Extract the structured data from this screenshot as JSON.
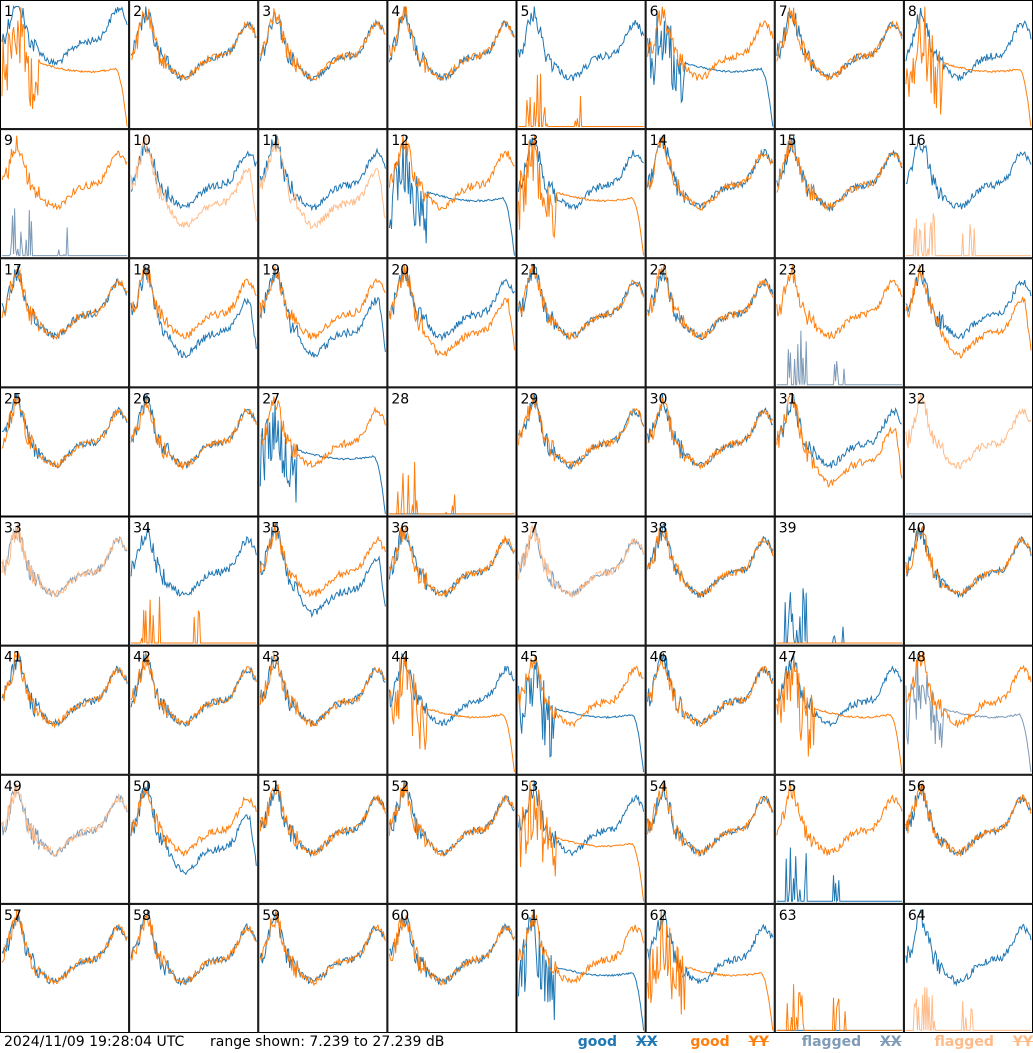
{
  "timestamp": "2024/11/09 19:28:04 UTC",
  "range_text": "range shown: 7.239 to 27.239 dB",
  "legend": [
    {
      "prefix": "good ",
      "pol": "XX",
      "color": "#1f77b4"
    },
    {
      "prefix": "good ",
      "pol": "YY",
      "color": "#ff7f0e"
    },
    {
      "prefix": "flagged ",
      "pol": "XX",
      "color": "#7f9bb8"
    },
    {
      "prefix": "flagged ",
      "pol": "YY",
      "color": "#ffbb88"
    }
  ],
  "chart_data": {
    "type": "line",
    "grid": {
      "rows": 8,
      "cols": 8
    },
    "ylim_db": [
      7.239,
      27.239
    ],
    "panels": [
      {
        "label": "1",
        "xx": "r",
        "yy": "d"
      },
      {
        "label": "2",
        "xx": "g",
        "yy": "g"
      },
      {
        "label": "3",
        "xx": "g",
        "yy": "g"
      },
      {
        "label": "4",
        "xx": "g",
        "yy": "g"
      },
      {
        "label": "5",
        "xx": "g",
        "yy": "s"
      },
      {
        "label": "6",
        "xx": "d",
        "yy": "g"
      },
      {
        "label": "7",
        "xx": "g",
        "yy": "g"
      },
      {
        "label": "8",
        "xx": "g",
        "yy": "d"
      },
      {
        "label": "9",
        "xx": "fs",
        "yy": "g"
      },
      {
        "label": "10",
        "xx": "g",
        "yy": "fl"
      },
      {
        "label": "11",
        "xx": "g",
        "yy": "fl"
      },
      {
        "label": "12",
        "xx": "d",
        "yy": "g"
      },
      {
        "label": "13",
        "xx": "g",
        "yy": "d"
      },
      {
        "label": "14",
        "xx": "g",
        "yy": "g"
      },
      {
        "label": "15",
        "xx": "g",
        "yy": "g"
      },
      {
        "label": "16",
        "xx": "g",
        "yy": "fs"
      },
      {
        "label": "17",
        "xx": "g",
        "yy": "g"
      },
      {
        "label": "18",
        "xx": "l",
        "yy": "g"
      },
      {
        "label": "19",
        "xx": "l",
        "yy": "g"
      },
      {
        "label": "20",
        "xx": "g",
        "yy": "l"
      },
      {
        "label": "21",
        "xx": "g",
        "yy": "g"
      },
      {
        "label": "22",
        "xx": "g",
        "yy": "g"
      },
      {
        "label": "23",
        "xx": "fs",
        "yy": "g"
      },
      {
        "label": "24",
        "xx": "g",
        "yy": "l"
      },
      {
        "label": "25",
        "xx": "g",
        "yy": "g"
      },
      {
        "label": "26",
        "xx": "g",
        "yy": "g"
      },
      {
        "label": "27",
        "xx": "d",
        "yy": "g"
      },
      {
        "label": "28",
        "xx": "z",
        "yy": "s"
      },
      {
        "label": "29",
        "xx": "g",
        "yy": "g"
      },
      {
        "label": "30",
        "xx": "g",
        "yy": "g"
      },
      {
        "label": "31",
        "xx": "g",
        "yy": "l"
      },
      {
        "label": "32",
        "xx": "fz",
        "yy": "fg"
      },
      {
        "label": "33",
        "xx": "fg",
        "yy": "fg"
      },
      {
        "label": "34",
        "xx": "g",
        "yy": "s"
      },
      {
        "label": "35",
        "xx": "l",
        "yy": "g"
      },
      {
        "label": "36",
        "xx": "g",
        "yy": "g"
      },
      {
        "label": "37",
        "xx": "fg",
        "yy": "fg"
      },
      {
        "label": "38",
        "xx": "g",
        "yy": "g"
      },
      {
        "label": "39",
        "xx": "s",
        "yy": "z"
      },
      {
        "label": "40",
        "xx": "g",
        "yy": "g"
      },
      {
        "label": "41",
        "xx": "g",
        "yy": "g"
      },
      {
        "label": "42",
        "xx": "g",
        "yy": "g"
      },
      {
        "label": "43",
        "xx": "g",
        "yy": "g"
      },
      {
        "label": "44",
        "xx": "g",
        "yy": "d"
      },
      {
        "label": "45",
        "xx": "d",
        "yy": "g"
      },
      {
        "label": "46",
        "xx": "g",
        "yy": "g"
      },
      {
        "label": "47",
        "xx": "g",
        "yy": "d"
      },
      {
        "label": "48",
        "xx": "fd",
        "yy": "g"
      },
      {
        "label": "49",
        "xx": "fg",
        "yy": "fg"
      },
      {
        "label": "50",
        "xx": "l",
        "yy": "g"
      },
      {
        "label": "51",
        "xx": "g",
        "yy": "g"
      },
      {
        "label": "52",
        "xx": "g",
        "yy": "g"
      },
      {
        "label": "53",
        "xx": "g",
        "yy": "d"
      },
      {
        "label": "54",
        "xx": "g",
        "yy": "g"
      },
      {
        "label": "55",
        "xx": "s",
        "yy": "g"
      },
      {
        "label": "56",
        "xx": "g",
        "yy": "g"
      },
      {
        "label": "57",
        "xx": "g",
        "yy": "g"
      },
      {
        "label": "58",
        "xx": "g",
        "yy": "g"
      },
      {
        "label": "59",
        "xx": "g",
        "yy": "g"
      },
      {
        "label": "60",
        "xx": "g",
        "yy": "g"
      },
      {
        "label": "61",
        "xx": "d",
        "yy": "g"
      },
      {
        "label": "62",
        "xx": "g",
        "yy": "d"
      },
      {
        "label": "63",
        "xx": "z",
        "yy": "s"
      },
      {
        "label": "64",
        "xx": "g",
        "yy": "fs"
      }
    ]
  }
}
